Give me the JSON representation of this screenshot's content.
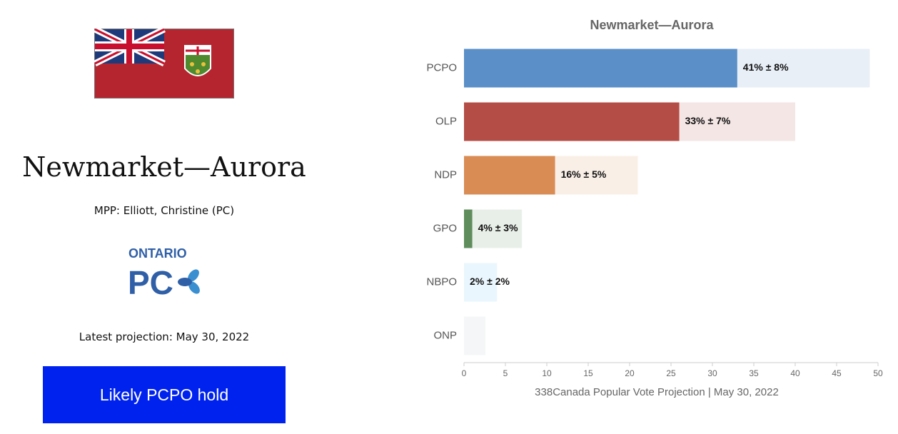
{
  "panel": {
    "riding": "Newmarket—Aurora",
    "mpp": "MPP: Elliott, Christine (PC)",
    "logo_top": "ONTARIO",
    "logo_main": "PC",
    "projection": "Latest projection: May 30, 2022",
    "verdict": "Likely PCPO hold"
  },
  "chart_data": {
    "type": "bar",
    "orientation": "horizontal",
    "title": "Newmarket—Aurora",
    "categories": [
      "PCPO",
      "OLP",
      "NDP",
      "GPO",
      "NBPO",
      "ONP"
    ],
    "values": [
      41,
      33,
      16,
      4,
      2,
      1.3
    ],
    "errors": [
      8,
      7,
      5,
      3,
      2,
      1.3
    ],
    "value_labels": [
      "41% ± 8%",
      "33% ± 7%",
      "16% ± 5%",
      "4% ± 3%",
      "2% ± 2%",
      null
    ],
    "colors": [
      "#5a8fc8",
      "#b44d46",
      "#da8c55",
      "#5f8e5c",
      "#6cbfee",
      "#b8bcc8"
    ],
    "xlabel": "338Canada Popular Vote Projection | May 30, 2022",
    "xlim": [
      0,
      50
    ],
    "xticks": [
      0,
      5,
      10,
      15,
      20,
      25,
      30,
      35,
      40,
      45,
      50
    ],
    "grid": false
  }
}
